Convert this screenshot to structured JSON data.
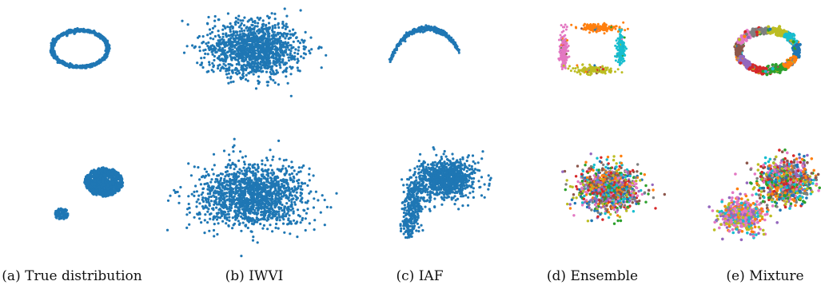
{
  "figure": {
    "captions": [
      "(a) True distribution",
      "(b) IWVI",
      "(c) IAF",
      "(d) Ensemble",
      "(e) Mixture"
    ]
  },
  "colors": {
    "scatter_blue": "#1f77b4",
    "component_palette": [
      "#1f77b4",
      "#ff7f0e",
      "#2ca02c",
      "#d62728",
      "#9467bd",
      "#8c564b",
      "#e377c2",
      "#7f7f7f",
      "#bcbd22",
      "#17becf"
    ]
  },
  "chart_data": [
    {
      "type": "scatter",
      "panel": "a",
      "row": "top",
      "distribution": "ring",
      "coloring": "single",
      "axes": "off",
      "grid": false
    },
    {
      "type": "scatter",
      "panel": "b",
      "row": "top",
      "distribution": "broad gaussian",
      "coloring": "single",
      "axes": "off",
      "grid": false
    },
    {
      "type": "scatter",
      "panel": "c",
      "row": "top",
      "distribution": "arc",
      "coloring": "single",
      "axes": "off",
      "grid": false
    },
    {
      "type": "scatter",
      "panel": "d",
      "row": "top",
      "distribution": "four clusters on ring",
      "coloring": "per component",
      "axes": "off",
      "grid": false
    },
    {
      "type": "scatter",
      "panel": "e",
      "row": "top",
      "distribution": "ring",
      "coloring": "per component",
      "axes": "off",
      "grid": false
    },
    {
      "type": "scatter",
      "panel": "a",
      "row": "bottom",
      "distribution": "two gaussian blobs",
      "coloring": "single",
      "axes": "off",
      "grid": false
    },
    {
      "type": "scatter",
      "panel": "b",
      "row": "bottom",
      "distribution": "broad gaussian",
      "coloring": "single",
      "axes": "off",
      "grid": false
    },
    {
      "type": "scatter",
      "panel": "c",
      "row": "bottom",
      "distribution": "blob with tail",
      "coloring": "single",
      "axes": "off",
      "grid": false
    },
    {
      "type": "scatter",
      "panel": "d",
      "row": "bottom",
      "distribution": "single gaussian",
      "coloring": "per component",
      "axes": "off",
      "grid": false
    },
    {
      "type": "scatter",
      "panel": "e",
      "row": "bottom",
      "distribution": "two gaussian blobs",
      "coloring": "per component",
      "axes": "off",
      "grid": false
    }
  ]
}
